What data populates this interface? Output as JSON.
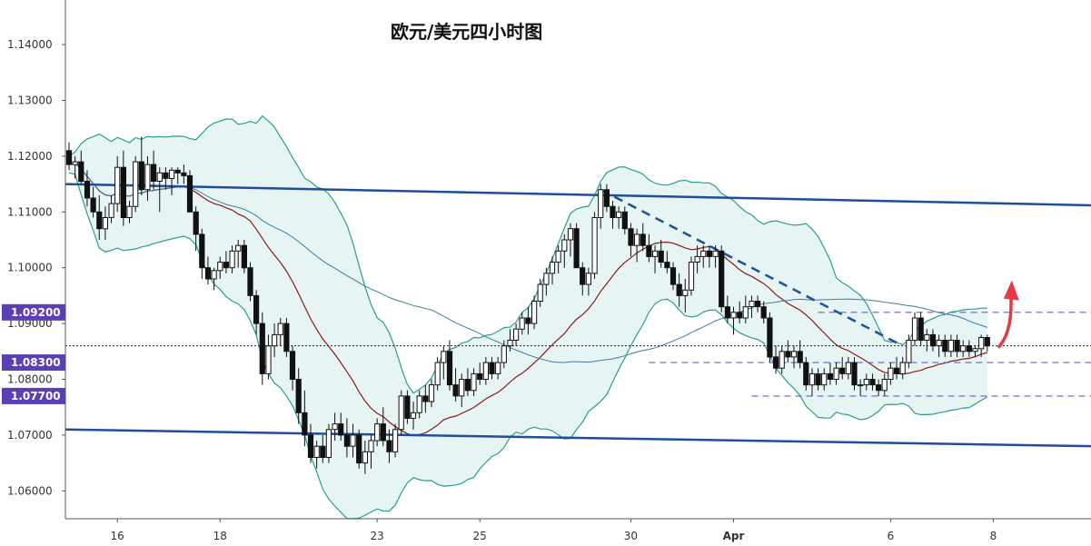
{
  "chart_data": {
    "type": "candlestick",
    "title": "欧元/美元四小时图",
    "y_axis": {
      "min": 1.055,
      "max": 1.148,
      "ticks": [
        "1.14000",
        "1.13000",
        "1.12000",
        "1.11000",
        "1.10000",
        "1.09000",
        "1.08000",
        "1.07000",
        "1.06000"
      ],
      "tick_values": [
        1.14,
        1.13,
        1.12,
        1.11,
        1.1,
        1.09,
        1.08,
        1.07,
        1.06
      ]
    },
    "x_axis": {
      "labels": [
        "16",
        "18",
        "23",
        "25",
        "30",
        "Apr",
        "6",
        "8"
      ],
      "label_candle_index": [
        8,
        25,
        51,
        68,
        93,
        110,
        136,
        153
      ]
    },
    "price_labels": [
      {
        "text": "1.09200",
        "value": 1.092
      },
      {
        "text": "1.08300",
        "value": 1.083
      },
      {
        "text": "1.07700",
        "value": 1.077
      }
    ],
    "current_price_line": 1.086,
    "candles": [
      [
        1.121,
        1.1225,
        1.1175,
        1.1185
      ],
      [
        1.1185,
        1.12,
        1.116,
        1.119
      ],
      [
        1.119,
        1.121,
        1.115,
        1.1155
      ],
      [
        1.1155,
        1.1175,
        1.111,
        1.1125
      ],
      [
        1.1125,
        1.1145,
        1.109,
        1.11
      ],
      [
        1.11,
        1.113,
        1.105,
        1.107
      ],
      [
        1.107,
        1.111,
        1.105,
        1.109
      ],
      [
        1.109,
        1.113,
        1.108,
        1.1115
      ],
      [
        1.1115,
        1.12,
        1.11,
        1.118
      ],
      [
        1.118,
        1.121,
        1.1075,
        1.109
      ],
      [
        1.109,
        1.112,
        1.108,
        1.111
      ],
      [
        1.111,
        1.12,
        1.11,
        1.119
      ],
      [
        1.119,
        1.1235,
        1.113,
        1.114
      ],
      [
        1.114,
        1.12,
        1.112,
        1.1185
      ],
      [
        1.1185,
        1.121,
        1.114,
        1.1155
      ],
      [
        1.1155,
        1.118,
        1.11,
        1.117
      ],
      [
        1.117,
        1.118,
        1.114,
        1.116
      ],
      [
        1.116,
        1.118,
        1.113,
        1.1175
      ],
      [
        1.1175,
        1.118,
        1.115,
        1.117
      ],
      [
        1.117,
        1.1185,
        1.115,
        1.1165
      ],
      [
        1.1165,
        1.1175,
        1.11,
        1.11
      ],
      [
        1.11,
        1.111,
        1.103,
        1.106
      ],
      [
        1.106,
        1.107,
        1.098,
        1.1
      ],
      [
        1.1,
        1.102,
        1.097,
        1.098
      ],
      [
        1.098,
        1.1,
        1.096,
        1.0995
      ],
      [
        1.0995,
        1.102,
        1.098,
        1.101
      ],
      [
        1.101,
        1.103,
        1.099,
        1.1
      ],
      [
        1.1,
        1.104,
        1.099,
        1.103
      ],
      [
        1.103,
        1.105,
        1.1,
        1.104
      ],
      [
        1.104,
        1.105,
        1.099,
        1.1
      ],
      [
        1.1,
        1.101,
        1.094,
        1.095
      ],
      [
        1.095,
        1.096,
        1.088,
        1.09
      ],
      [
        1.09,
        1.092,
        1.079,
        1.081
      ],
      [
        1.081,
        1.088,
        1.08,
        1.086
      ],
      [
        1.086,
        1.09,
        1.084,
        1.088
      ],
      [
        1.088,
        1.091,
        1.086,
        1.09
      ],
      [
        1.09,
        1.091,
        1.084,
        1.085
      ],
      [
        1.085,
        1.086,
        1.078,
        1.08
      ],
      [
        1.08,
        1.082,
        1.072,
        1.074
      ],
      [
        1.074,
        1.078,
        1.068,
        1.07
      ],
      [
        1.07,
        1.072,
        1.065,
        1.066
      ],
      [
        1.066,
        1.069,
        1.064,
        1.068
      ],
      [
        1.068,
        1.07,
        1.065,
        1.066
      ],
      [
        1.066,
        1.072,
        1.065,
        1.071
      ],
      [
        1.071,
        1.074,
        1.069,
        1.072
      ],
      [
        1.072,
        1.074,
        1.069,
        1.07
      ],
      [
        1.07,
        1.073,
        1.066,
        1.068
      ],
      [
        1.068,
        1.072,
        1.066,
        1.07
      ],
      [
        1.07,
        1.071,
        1.064,
        1.065
      ],
      [
        1.065,
        1.069,
        1.063,
        1.067
      ],
      [
        1.067,
        1.07,
        1.064,
        1.069
      ],
      [
        1.069,
        1.073,
        1.068,
        1.072
      ],
      [
        1.072,
        1.075,
        1.068,
        1.069
      ],
      [
        1.069,
        1.071,
        1.065,
        1.067
      ],
      [
        1.067,
        1.072,
        1.066,
        1.071
      ],
      [
        1.071,
        1.078,
        1.07,
        1.077
      ],
      [
        1.077,
        1.078,
        1.072,
        1.073
      ],
      [
        1.073,
        1.076,
        1.071,
        1.074
      ],
      [
        1.074,
        1.078,
        1.073,
        1.077
      ],
      [
        1.077,
        1.079,
        1.074,
        1.076
      ],
      [
        1.076,
        1.08,
        1.075,
        1.079
      ],
      [
        1.079,
        1.084,
        1.078,
        1.083
      ],
      [
        1.083,
        1.086,
        1.08,
        1.085
      ],
      [
        1.085,
        1.087,
        1.078,
        1.079
      ],
      [
        1.079,
        1.082,
        1.076,
        1.077
      ],
      [
        1.077,
        1.081,
        1.075,
        1.08
      ],
      [
        1.08,
        1.082,
        1.077,
        1.078
      ],
      [
        1.078,
        1.082,
        1.077,
        1.081
      ],
      [
        1.081,
        1.083,
        1.079,
        1.08
      ],
      [
        1.08,
        1.084,
        1.079,
        1.083
      ],
      [
        1.083,
        1.084,
        1.08,
        1.081
      ],
      [
        1.081,
        1.084,
        1.08,
        1.083
      ],
      [
        1.083,
        1.087,
        1.082,
        1.086
      ],
      [
        1.086,
        1.089,
        1.085,
        1.087
      ],
      [
        1.087,
        1.09,
        1.086,
        1.089
      ],
      [
        1.089,
        1.092,
        1.088,
        1.091
      ],
      [
        1.091,
        1.093,
        1.088,
        1.09
      ],
      [
        1.09,
        1.095,
        1.089,
        1.094
      ],
      [
        1.094,
        1.098,
        1.093,
        1.097
      ],
      [
        1.097,
        1.1,
        1.095,
        1.099
      ],
      [
        1.099,
        1.102,
        1.097,
        1.101
      ],
      [
        1.101,
        1.104,
        1.099,
        1.103
      ],
      [
        1.103,
        1.106,
        1.1,
        1.105
      ],
      [
        1.105,
        1.108,
        1.102,
        1.107
      ],
      [
        1.107,
        1.108,
        1.1,
        1.1
      ],
      [
        1.1,
        1.101,
        1.095,
        1.097
      ],
      [
        1.097,
        1.1,
        1.095,
        1.099
      ],
      [
        1.099,
        1.11,
        1.098,
        1.109
      ],
      [
        1.109,
        1.115,
        1.107,
        1.114
      ],
      [
        1.114,
        1.115,
        1.11,
        1.111
      ],
      [
        1.111,
        1.112,
        1.107,
        1.109
      ],
      [
        1.109,
        1.111,
        1.107,
        1.11
      ],
      [
        1.11,
        1.111,
        1.106,
        1.107
      ],
      [
        1.107,
        1.108,
        1.102,
        1.104
      ],
      [
        1.104,
        1.107,
        1.101,
        1.106
      ],
      [
        1.106,
        1.108,
        1.103,
        1.104
      ],
      [
        1.104,
        1.106,
        1.101,
        1.102
      ],
      [
        1.102,
        1.104,
        1.099,
        1.103
      ],
      [
        1.103,
        1.105,
        1.1,
        1.101
      ],
      [
        1.101,
        1.103,
        1.099,
        1.1
      ],
      [
        1.1,
        1.101,
        1.096,
        1.097
      ],
      [
        1.097,
        1.099,
        1.093,
        1.095
      ],
      [
        1.095,
        1.098,
        1.092,
        1.096
      ],
      [
        1.096,
        1.102,
        1.095,
        1.101
      ],
      [
        1.101,
        1.104,
        1.099,
        1.102
      ],
      [
        1.102,
        1.104,
        1.1,
        1.103
      ],
      [
        1.103,
        1.104,
        1.1,
        1.102
      ],
      [
        1.102,
        1.104,
        1.1,
        1.103
      ],
      [
        1.103,
        1.104,
        1.092,
        1.093
      ],
      [
        1.093,
        1.095,
        1.09,
        1.091
      ],
      [
        1.091,
        1.093,
        1.088,
        1.092
      ],
      [
        1.092,
        1.094,
        1.09,
        1.091
      ],
      [
        1.091,
        1.095,
        1.09,
        1.093
      ],
      [
        1.093,
        1.095,
        1.091,
        1.094
      ],
      [
        1.094,
        1.095,
        1.092,
        1.093
      ],
      [
        1.093,
        1.094,
        1.09,
        1.091
      ],
      [
        1.091,
        1.092,
        1.083,
        1.084
      ],
      [
        1.084,
        1.086,
        1.081,
        1.082
      ],
      [
        1.082,
        1.086,
        1.081,
        1.085
      ],
      [
        1.085,
        1.087,
        1.083,
        1.084
      ],
      [
        1.084,
        1.086,
        1.082,
        1.085
      ],
      [
        1.085,
        1.087,
        1.082,
        1.083
      ],
      [
        1.083,
        1.084,
        1.078,
        1.079
      ],
      [
        1.079,
        1.082,
        1.077,
        1.081
      ],
      [
        1.081,
        1.082,
        1.078,
        1.079
      ],
      [
        1.079,
        1.082,
        1.078,
        1.081
      ],
      [
        1.081,
        1.083,
        1.079,
        1.08
      ],
      [
        1.08,
        1.083,
        1.079,
        1.082
      ],
      [
        1.082,
        1.084,
        1.08,
        1.081
      ],
      [
        1.081,
        1.084,
        1.08,
        1.083
      ],
      [
        1.083,
        1.084,
        1.078,
        1.079
      ],
      [
        1.079,
        1.08,
        1.077,
        1.079
      ],
      [
        1.079,
        1.081,
        1.078,
        1.08
      ],
      [
        1.08,
        1.081,
        1.078,
        1.079
      ],
      [
        1.079,
        1.08,
        1.077,
        1.078
      ],
      [
        1.078,
        1.081,
        1.077,
        1.08
      ],
      [
        1.08,
        1.083,
        1.079,
        1.082
      ],
      [
        1.082,
        1.084,
        1.08,
        1.081
      ],
      [
        1.081,
        1.084,
        1.08,
        1.083
      ],
      [
        1.083,
        1.088,
        1.082,
        1.087
      ],
      [
        1.087,
        1.092,
        1.086,
        1.091
      ],
      [
        1.091,
        1.092,
        1.086,
        1.087
      ],
      [
        1.087,
        1.089,
        1.085,
        1.088
      ],
      [
        1.088,
        1.089,
        1.085,
        1.086
      ],
      [
        1.086,
        1.088,
        1.084,
        1.087
      ],
      [
        1.087,
        1.088,
        1.084,
        1.085
      ],
      [
        1.085,
        1.088,
        1.084,
        1.087
      ],
      [
        1.087,
        1.088,
        1.084,
        1.085
      ],
      [
        1.085,
        1.087,
        1.084,
        1.086
      ],
      [
        1.086,
        1.087,
        1.084,
        1.085
      ],
      [
        1.085,
        1.086,
        1.084,
        1.0855
      ],
      [
        1.0855,
        1.088,
        1.084,
        1.0875
      ],
      [
        1.0875,
        1.088,
        1.085,
        1.086
      ]
    ]
  }
}
